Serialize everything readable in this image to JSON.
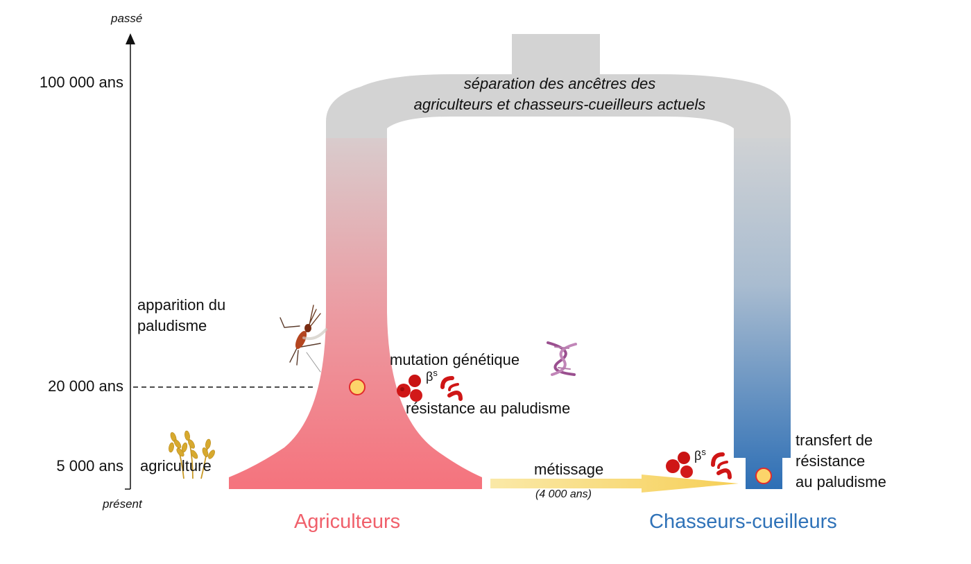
{
  "time_axis": {
    "top_label": "passé",
    "bottom_label": "présent",
    "ticks": [
      {
        "label": "100 000 ans",
        "years": 100000
      },
      {
        "label": "20 000 ans",
        "years": 20000
      },
      {
        "label": "5 000 ans",
        "years": 5000
      }
    ]
  },
  "events": {
    "malaria": [
      "apparition du",
      "paludisme"
    ],
    "agriculture": "agriculture",
    "mutation": "mutation génétique",
    "resistance": "résistance au paludisme",
    "split": [
      "séparation des ancêtres des",
      "agriculteurs et chasseurs-cueilleurs actuels"
    ],
    "admixture": "métissage",
    "admixture_time": "(4 000 ans)",
    "transfer": [
      "transfert de",
      "résistance",
      "au paludisme"
    ],
    "beta_symbol": "βs"
  },
  "populations": {
    "farmers": {
      "label": "Agriculteurs",
      "color": "#f0606b"
    },
    "hunters": {
      "label": "Chasseurs-cueilleurs",
      "color": "#2f72b8"
    }
  },
  "colors": {
    "ancestral": "#d3d3d3",
    "farmer_fill": "#f27a84",
    "hunter_fill": "#3a78b9",
    "mutation_dot": "#fcd46a",
    "dot_outline": "#e22b2b",
    "arrow": "#f7d667",
    "red_cell": "#cf1616"
  },
  "icons": [
    "mosquito-icon",
    "wheat-icon",
    "dna-icon",
    "red-blood-cell-icon",
    "sickle-cell-icon"
  ]
}
